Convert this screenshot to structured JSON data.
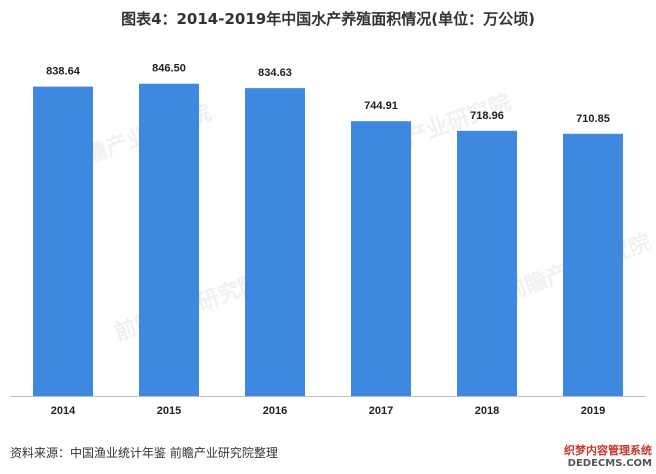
{
  "title": "图表4：2014-2019年中国水产养殖面积情况(单位：万公顷)",
  "source": "资料来源：中国渔业统计年鉴 前瞻产业研究院整理",
  "watermark": {
    "background_text": "前瞻产业研究院",
    "line1": "织梦内容管理系统",
    "line2": "DEDECMS.COM"
  },
  "colors": {
    "bar": "#3f88df",
    "axis": "#bfbfbf"
  },
  "chart_data": {
    "type": "bar",
    "title": "图表4：2014-2019年中国水产养殖面积情况(单位：万公顷)",
    "categories": [
      "2014",
      "2015",
      "2016",
      "2017",
      "2018",
      "2019"
    ],
    "values": [
      838.64,
      846.5,
      834.63,
      744.91,
      718.96,
      710.85
    ],
    "value_labels": [
      "838.64",
      "846.50",
      "834.63",
      "744.91",
      "718.96",
      "710.85"
    ],
    "xlabel": "",
    "ylabel": "",
    "ylim": [
      0,
      900
    ],
    "grid": false,
    "legend": "none"
  }
}
